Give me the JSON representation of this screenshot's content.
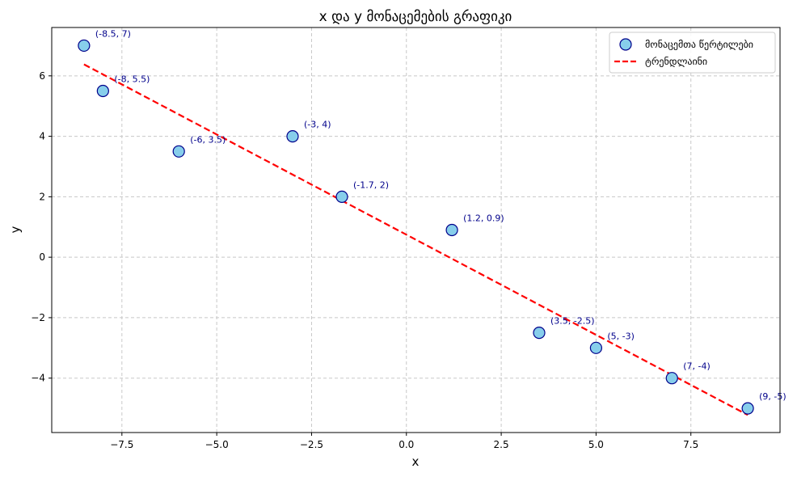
{
  "chart_data": {
    "type": "scatter",
    "title": "x და y მონაცემების გრაფიკი",
    "xlabel": "x",
    "ylabel": "y",
    "xlim": [
      -9.35,
      9.85
    ],
    "ylim": [
      -5.8,
      7.6
    ],
    "xticks": [
      -7.5,
      -5.0,
      -2.5,
      0.0,
      2.5,
      5.0,
      7.5
    ],
    "xtick_labels": [
      "−7.5",
      "−5.0",
      "−2.5",
      "0.0",
      "2.5",
      "5.0",
      "7.5"
    ],
    "yticks": [
      -4,
      -2,
      0,
      2,
      4,
      6
    ],
    "ytick_labels": [
      "−4",
      "−2",
      "0",
      "2",
      "4",
      "6"
    ],
    "grid": true,
    "legend_position": "top-right",
    "series": [
      {
        "name": "მონაცემთა წერტილები",
        "kind": "scatter",
        "color": "#87ceeb",
        "edge_color": "#00008b",
        "x": [
          -8.5,
          -8,
          -6,
          -3,
          -1.7,
          1.2,
          3.5,
          5,
          7,
          9
        ],
        "y": [
          7,
          5.5,
          3.5,
          4,
          2,
          0.9,
          -2.5,
          -3,
          -4,
          -5
        ],
        "labels": [
          "(-8.5, 7)",
          "(-8, 5.5)",
          "(-6, 3.5)",
          "(-3, 4)",
          "(-1.7, 2)",
          "(1.2, 0.9)",
          "(3.5, -2.5)",
          "(5, -3)",
          "(7, -4)",
          "(9, -5)"
        ]
      },
      {
        "name": "ტრენდლაინი",
        "kind": "line",
        "style": "dashed",
        "color": "#ff0000",
        "x": [
          -8.5,
          9
        ],
        "y": [
          6.38,
          -5.22
        ]
      }
    ]
  }
}
